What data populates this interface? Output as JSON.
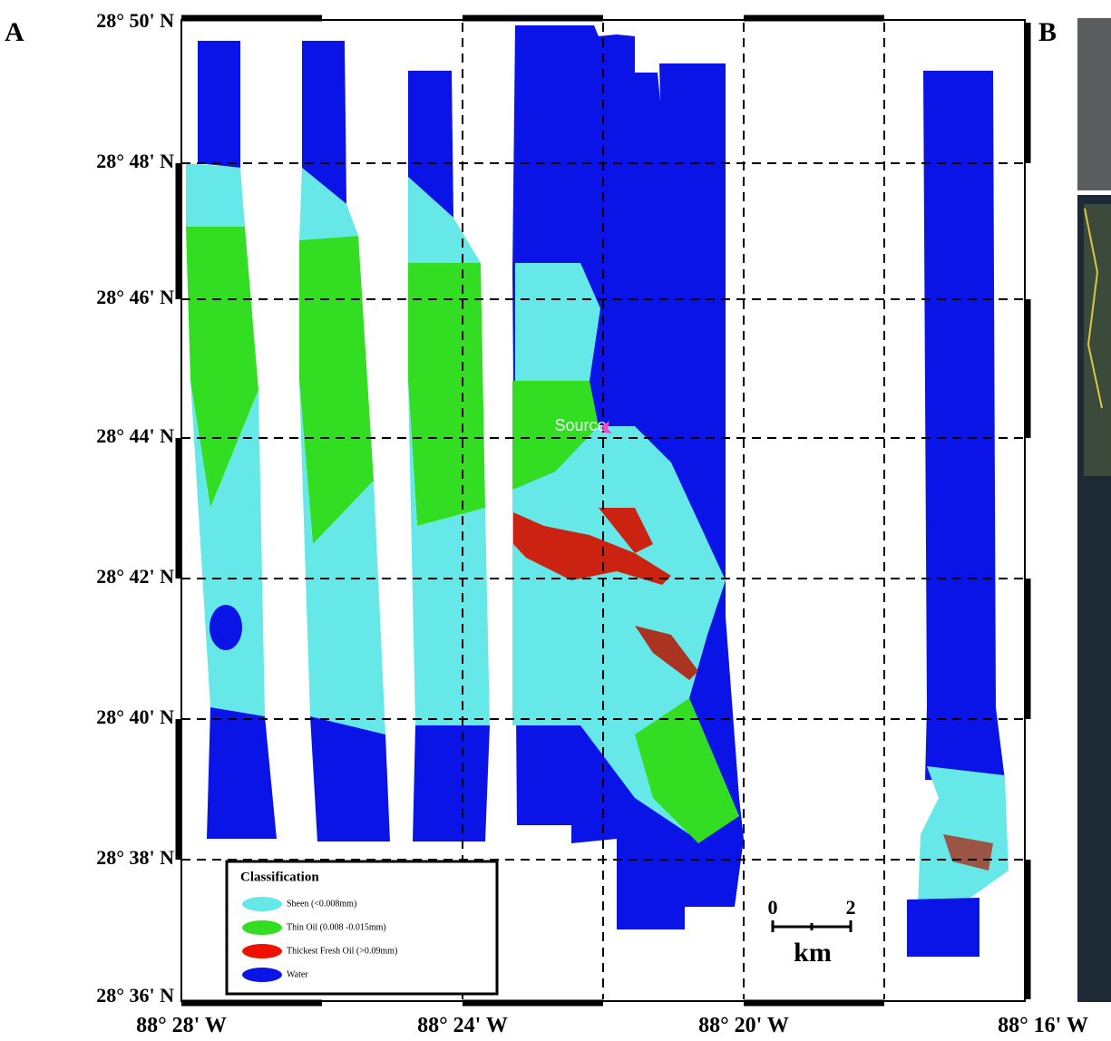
{
  "panels": [
    "A",
    "B"
  ],
  "latitude_labels": [
    "28° 50' N",
    "28° 48' N",
    "28° 46' N",
    "28° 44' N",
    "28° 42' N",
    "28° 40' N",
    "28° 38' N",
    "28° 36' N"
  ],
  "longitude_labels": [
    "88° 28' W",
    "88° 24' W",
    "88° 20' W",
    "88° 16' W"
  ],
  "source_label": "Source",
  "legend": {
    "title": "Classification",
    "items": [
      "Sheen (<0.008mm)",
      "Thin Oil (0.008 -0.015mm)",
      "Thickest Fresh Oil (>0.09mm)",
      "Water"
    ]
  },
  "scale_bar": {
    "start": "0",
    "end": "2",
    "unit": "km"
  }
}
